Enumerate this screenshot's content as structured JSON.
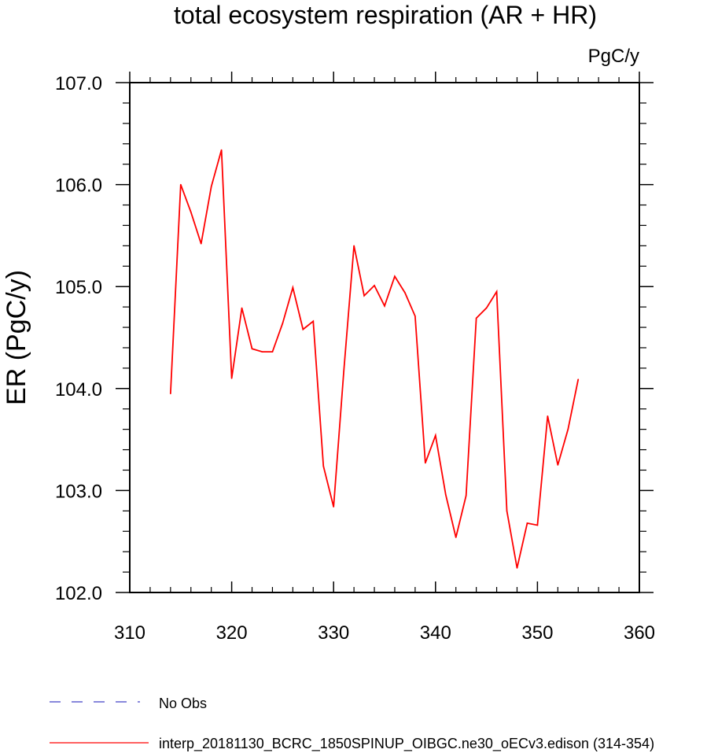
{
  "chart_data": {
    "type": "line",
    "title": "total ecosystem respiration (AR + HR)",
    "units": "PgC/y",
    "xlabel": "",
    "ylabel": "ER  (PgC/y)",
    "xlim": [
      310,
      360
    ],
    "ylim": [
      102.0,
      107.0
    ],
    "x_ticks": [
      "310",
      "320",
      "330",
      "340",
      "350",
      "360"
    ],
    "y_ticks": [
      "102.0",
      "103.0",
      "104.0",
      "105.0",
      "106.0",
      "107.0"
    ],
    "grid": false,
    "legend_position": "bottom-left",
    "series": [
      {
        "name": "No Obs",
        "color": "#4040c8",
        "style": "dashed",
        "x": [],
        "y": []
      },
      {
        "name": "interp_20181130_BCRC_1850SPINUP_OIBGC.ne30_oECv3.edison (314-354)",
        "color": "#ff0000",
        "style": "solid",
        "x": [
          314,
          315,
          316,
          317,
          318,
          319,
          320,
          321,
          322,
          323,
          324,
          325,
          326,
          327,
          328,
          329,
          330,
          331,
          332,
          333,
          334,
          335,
          336,
          337,
          338,
          339,
          340,
          341,
          342,
          343,
          344,
          345,
          346,
          347,
          348,
          349,
          350,
          351,
          352,
          353,
          354
        ],
        "y": [
          103.95,
          106.0,
          105.73,
          105.42,
          105.98,
          106.34,
          104.1,
          104.79,
          104.39,
          104.36,
          104.36,
          104.64,
          104.99,
          104.58,
          104.66,
          103.24,
          102.84,
          104.17,
          105.4,
          104.91,
          105.01,
          104.81,
          105.1,
          104.94,
          104.71,
          103.27,
          103.54,
          102.96,
          102.54,
          102.95,
          104.69,
          104.79,
          104.95,
          102.8,
          102.24,
          102.68,
          102.66,
          103.73,
          103.25,
          103.6,
          104.09
        ]
      }
    ]
  }
}
